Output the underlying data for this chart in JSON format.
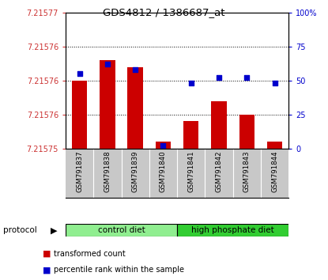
{
  "title": "GDS4812 / 1386687_at",
  "samples": [
    "GSM791837",
    "GSM791838",
    "GSM791839",
    "GSM791840",
    "GSM791841",
    "GSM791842",
    "GSM791843",
    "GSM791844"
  ],
  "red_values": [
    7.21576,
    7.215763,
    7.215762,
    7.215751,
    7.215754,
    7.215757,
    7.215755,
    7.215751
  ],
  "blue_values": [
    55,
    62,
    58,
    2,
    48,
    52,
    52,
    48
  ],
  "ylim_left": [
    7.21575,
    7.21577
  ],
  "ylim_right": [
    0,
    100
  ],
  "ytick_positions": [
    7.21575,
    7.215753,
    7.215756,
    7.21576,
    7.215763,
    7.21577
  ],
  "ytick_labels": [
    "7.21575",
    "7.21576",
    "7.21576",
    "7.21576",
    "7.21576",
    "7.21577"
  ],
  "right_ticks": [
    0,
    25,
    50,
    75,
    100
  ],
  "right_tick_labels": [
    "0",
    "25",
    "50",
    "75",
    "100%"
  ],
  "groups": [
    {
      "label": "control diet",
      "start": 0,
      "end": 4,
      "color": "#90EE90"
    },
    {
      "label": "high phosphate diet",
      "start": 4,
      "end": 8,
      "color": "#32CD32"
    }
  ],
  "protocol_label": "protocol",
  "bar_color": "#CC0000",
  "dot_color": "#0000CC",
  "legend_red": "transformed count",
  "legend_blue": "percentile rank within the sample",
  "tick_color_left": "#CC3333",
  "tick_color_right": "#0000CC",
  "sample_bg": "#C8C8C8",
  "group_border_color": "#000000"
}
